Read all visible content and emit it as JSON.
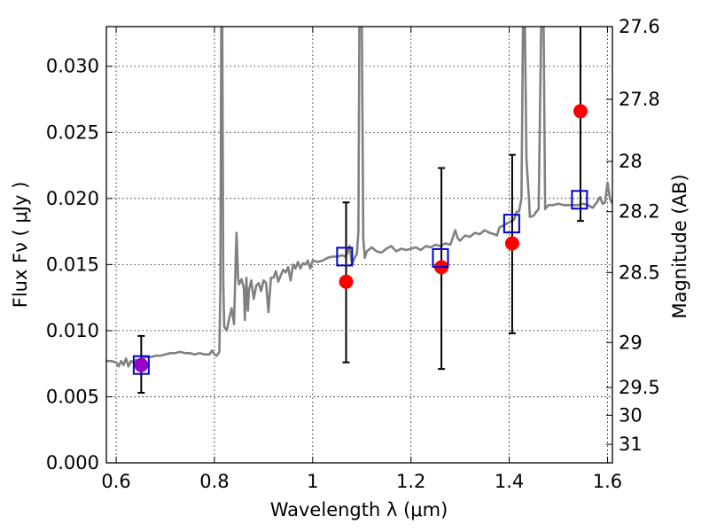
{
  "chart_data": {
    "type": "scatter",
    "xlabel": "Wavelength  λ (μm)",
    "ylabel": "Flux  Fν  ( μJy )",
    "y2label": "Magnitude (AB)",
    "xlim": [
      0.58,
      1.61
    ],
    "ylim": [
      0.0,
      0.033
    ],
    "grid": true,
    "x_ticks": [
      {
        "value": 0.6,
        "label": "0.6"
      },
      {
        "value": 0.8,
        "label": "0.8"
      },
      {
        "value": 1.0,
        "label": "1"
      },
      {
        "value": 1.2,
        "label": "1.2"
      },
      {
        "value": 1.4,
        "label": "1.4"
      },
      {
        "value": 1.6,
        "label": "1.6"
      }
    ],
    "y_ticks": [
      {
        "value": 0.0,
        "label": "0.000"
      },
      {
        "value": 0.005,
        "label": "0.005"
      },
      {
        "value": 0.01,
        "label": "0.010"
      },
      {
        "value": 0.015,
        "label": "0.015"
      },
      {
        "value": 0.02,
        "label": "0.020"
      },
      {
        "value": 0.025,
        "label": "0.025"
      },
      {
        "value": 0.03,
        "label": "0.030"
      }
    ],
    "y2_ticks": [
      {
        "label": "27.6",
        "flux": 0.033
      },
      {
        "label": "27.8",
        "flux": 0.0275
      },
      {
        "label": "28",
        "flux": 0.0228
      },
      {
        "label": "28.2",
        "flux": 0.019
      },
      {
        "label": "28.5",
        "flux": 0.0144
      },
      {
        "label": "29",
        "flux": 0.0091
      },
      {
        "label": "29.5",
        "flux": 0.0057
      },
      {
        "label": "30",
        "flux": 0.0036
      },
      {
        "label": "31",
        "flux": 0.0014
      }
    ],
    "colors": {
      "model": "#808080",
      "observed": "#ff0000",
      "synthetic": "#0000cc",
      "overlap": "#9b00c8",
      "errorbar": "#000000"
    },
    "series": [
      {
        "kind": "line",
        "points": [
          [
            0.58,
            0.0077
          ],
          [
            0.59,
            0.0077
          ],
          [
            0.6,
            0.0076
          ],
          [
            0.605,
            0.0073
          ],
          [
            0.61,
            0.0077
          ],
          [
            0.615,
            0.0074
          ],
          [
            0.62,
            0.0079
          ],
          [
            0.625,
            0.0073
          ],
          [
            0.63,
            0.0077
          ],
          [
            0.635,
            0.0076
          ],
          [
            0.64,
            0.0078
          ],
          [
            0.645,
            0.0075
          ],
          [
            0.65,
            0.0078
          ],
          [
            0.655,
            0.0079
          ],
          [
            0.66,
            0.008
          ],
          [
            0.67,
            0.008
          ],
          [
            0.68,
            0.0081
          ],
          [
            0.69,
            0.0081
          ],
          [
            0.7,
            0.0082
          ],
          [
            0.71,
            0.0083
          ],
          [
            0.72,
            0.0083
          ],
          [
            0.73,
            0.0084
          ],
          [
            0.74,
            0.0083
          ],
          [
            0.75,
            0.0083
          ],
          [
            0.76,
            0.0082
          ],
          [
            0.77,
            0.0083
          ],
          [
            0.78,
            0.0082
          ],
          [
            0.79,
            0.0082
          ],
          [
            0.795,
            0.0085
          ],
          [
            0.8,
            0.0082
          ],
          [
            0.805,
            0.0081
          ],
          [
            0.81,
            0.0084
          ],
          [
            0.812,
            0.013
          ],
          [
            0.814,
            0.033
          ],
          [
            0.816,
            0.033
          ],
          [
            0.818,
            0.0138
          ],
          [
            0.82,
            0.0103
          ],
          [
            0.825,
            0.01
          ],
          [
            0.83,
            0.0109
          ],
          [
            0.835,
            0.0117
          ],
          [
            0.84,
            0.0105
          ],
          [
            0.843,
            0.015
          ],
          [
            0.845,
            0.0174
          ],
          [
            0.848,
            0.014
          ],
          [
            0.85,
            0.0135
          ],
          [
            0.855,
            0.0139
          ],
          [
            0.86,
            0.0132
          ],
          [
            0.862,
            0.0108
          ],
          [
            0.865,
            0.014
          ],
          [
            0.868,
            0.0115
          ],
          [
            0.87,
            0.013
          ],
          [
            0.875,
            0.0138
          ],
          [
            0.88,
            0.0124
          ],
          [
            0.885,
            0.0134
          ],
          [
            0.89,
            0.0136
          ],
          [
            0.895,
            0.013
          ],
          [
            0.9,
            0.0138
          ],
          [
            0.905,
            0.0136
          ],
          [
            0.91,
            0.0114
          ],
          [
            0.915,
            0.014
          ],
          [
            0.92,
            0.014
          ],
          [
            0.925,
            0.0145
          ],
          [
            0.93,
            0.0137
          ],
          [
            0.935,
            0.0142
          ],
          [
            0.94,
            0.0146
          ],
          [
            0.945,
            0.0144
          ],
          [
            0.95,
            0.0148
          ],
          [
            0.955,
            0.0138
          ],
          [
            0.96,
            0.015
          ],
          [
            0.965,
            0.0147
          ],
          [
            0.97,
            0.0152
          ],
          [
            0.975,
            0.0147
          ],
          [
            0.98,
            0.0151
          ],
          [
            0.985,
            0.015
          ],
          [
            0.99,
            0.0153
          ],
          [
            0.995,
            0.0147
          ],
          [
            1.0,
            0.0153
          ],
          [
            1.01,
            0.0152
          ],
          [
            1.02,
            0.0153
          ],
          [
            1.03,
            0.0155
          ],
          [
            1.04,
            0.0156
          ],
          [
            1.05,
            0.0156
          ],
          [
            1.06,
            0.0157
          ],
          [
            1.065,
            0.0156
          ],
          [
            1.07,
            0.0158
          ],
          [
            1.075,
            0.0164
          ],
          [
            1.08,
            0.015
          ],
          [
            1.085,
            0.0155
          ],
          [
            1.09,
            0.0158
          ],
          [
            1.093,
            0.0175
          ],
          [
            1.095,
            0.033
          ],
          [
            1.1,
            0.033
          ],
          [
            1.103,
            0.017
          ],
          [
            1.106,
            0.0155
          ],
          [
            1.11,
            0.016
          ],
          [
            1.12,
            0.0163
          ],
          [
            1.13,
            0.016
          ],
          [
            1.14,
            0.0159
          ],
          [
            1.15,
            0.0162
          ],
          [
            1.16,
            0.0164
          ],
          [
            1.17,
            0.016
          ],
          [
            1.18,
            0.0162
          ],
          [
            1.19,
            0.0161
          ],
          [
            1.2,
            0.0162
          ],
          [
            1.21,
            0.0163
          ],
          [
            1.22,
            0.0161
          ],
          [
            1.23,
            0.0164
          ],
          [
            1.24,
            0.0163
          ],
          [
            1.25,
            0.0165
          ],
          [
            1.26,
            0.0164
          ],
          [
            1.27,
            0.0166
          ],
          [
            1.28,
            0.0165
          ],
          [
            1.285,
            0.017
          ],
          [
            1.29,
            0.0176
          ],
          [
            1.295,
            0.017
          ],
          [
            1.3,
            0.0168
          ],
          [
            1.31,
            0.0172
          ],
          [
            1.32,
            0.0171
          ],
          [
            1.33,
            0.0174
          ],
          [
            1.34,
            0.0173
          ],
          [
            1.35,
            0.0176
          ],
          [
            1.36,
            0.0174
          ],
          [
            1.37,
            0.0173
          ],
          [
            1.375,
            0.0172
          ],
          [
            1.38,
            0.0178
          ],
          [
            1.39,
            0.018
          ],
          [
            1.4,
            0.0182
          ],
          [
            1.41,
            0.0184
          ],
          [
            1.415,
            0.019
          ],
          [
            1.42,
            0.019
          ],
          [
            1.425,
            0.02
          ],
          [
            1.428,
            0.033
          ],
          [
            1.432,
            0.033
          ],
          [
            1.435,
            0.023
          ],
          [
            1.44,
            0.02
          ],
          [
            1.442,
            0.0186
          ],
          [
            1.45,
            0.0187
          ],
          [
            1.455,
            0.019
          ],
          [
            1.46,
            0.0192
          ],
          [
            1.465,
            0.033
          ],
          [
            1.47,
            0.033
          ],
          [
            1.473,
            0.0192
          ],
          [
            1.48,
            0.0195
          ],
          [
            1.49,
            0.0195
          ],
          [
            1.5,
            0.0196
          ],
          [
            1.51,
            0.0195
          ],
          [
            1.52,
            0.0195
          ],
          [
            1.53,
            0.0195
          ],
          [
            1.54,
            0.0195
          ],
          [
            1.55,
            0.0196
          ],
          [
            1.56,
            0.0195
          ],
          [
            1.57,
            0.0193
          ],
          [
            1.58,
            0.0198
          ],
          [
            1.585,
            0.0201
          ],
          [
            1.59,
            0.0196
          ],
          [
            1.595,
            0.0197
          ],
          [
            1.6,
            0.0212
          ],
          [
            1.605,
            0.02
          ],
          [
            1.61,
            0.0196
          ]
        ]
      },
      {
        "kind": "points",
        "x": [
          0.651,
          1.068,
          1.262,
          1.406,
          1.545
        ],
        "y": [
          0.0074,
          0.0137,
          0.0148,
          0.0166,
          0.0266
        ],
        "yerr_low": [
          0.0053,
          0.0076,
          0.0071,
          0.0098,
          0.0183
        ],
        "yerr_high": [
          0.0096,
          0.0197,
          0.0223,
          0.0233,
          0.033
        ]
      },
      {
        "kind": "squares",
        "x": [
          0.651,
          1.065,
          1.26,
          1.405,
          1.543
        ],
        "y": [
          0.0074,
          0.0156,
          0.0155,
          0.0181,
          0.0199
        ]
      }
    ]
  }
}
